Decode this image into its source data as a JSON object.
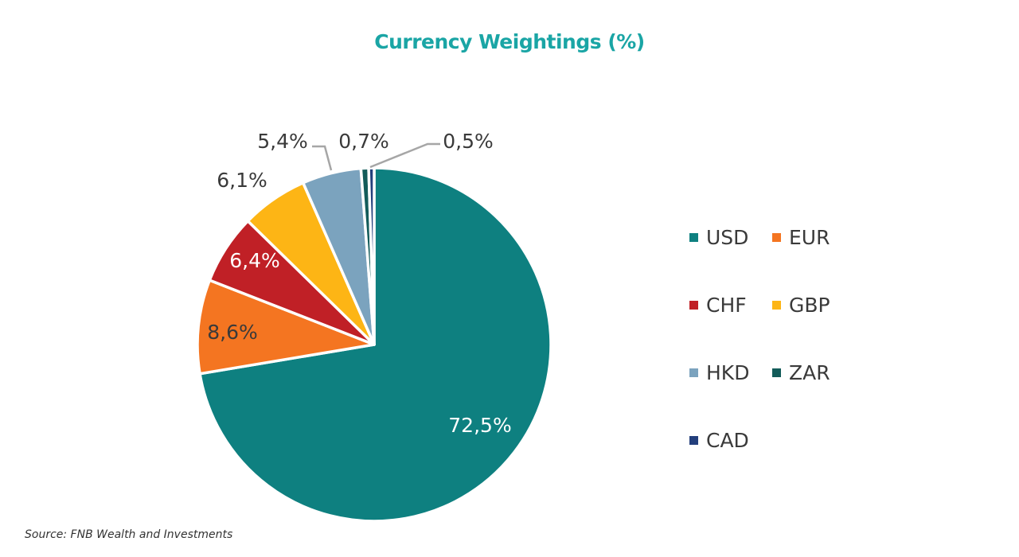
{
  "chart_data": {
    "type": "pie",
    "title": "Currency Weightings (%)",
    "start_angle": "12 o'clock, clockwise",
    "legend_position": "right",
    "slices": [
      {
        "label": "USD",
        "value": 72.5,
        "display": "72,5%",
        "color": "#0e8080"
      },
      {
        "label": "EUR",
        "value": 8.6,
        "display": "8,6%",
        "color": "#f47521"
      },
      {
        "label": "CHF",
        "value": 6.4,
        "display": "6,4%",
        "color": "#c02026"
      },
      {
        "label": "GBP",
        "value": 6.1,
        "display": "6,1%",
        "color": "#fdb515"
      },
      {
        "label": "HKD",
        "value": 5.4,
        "display": "5,4%",
        "color": "#7ba3be"
      },
      {
        "label": "ZAR",
        "value": 0.7,
        "display": "0,7%",
        "color": "#135c5a"
      },
      {
        "label": "CAD",
        "value": 0.5,
        "display": "0,5%",
        "color": "#233f7c"
      }
    ]
  },
  "source": "Source: FNB Wealth and Investments"
}
